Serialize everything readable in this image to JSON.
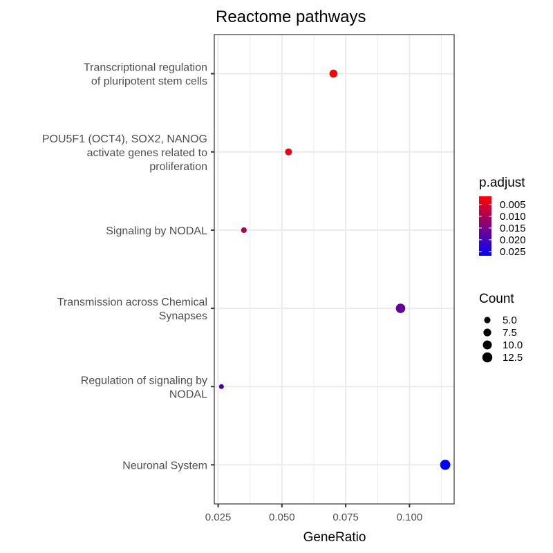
{
  "chart_data": {
    "type": "scatter",
    "title": "Reactome pathways",
    "xlabel": "GeneRatio",
    "ylabel": "",
    "xlim": [
      0.0235,
      0.1175
    ],
    "xticks": [
      0.025,
      0.05,
      0.075,
      0.1
    ],
    "xtick_labels": [
      "0.025",
      "0.050",
      "0.075",
      "0.100"
    ],
    "grid": true,
    "categories": [
      [
        "Transcriptional regulation",
        "of pluripotent stem cells"
      ],
      [
        "POU5F1 (OCT4), SOX2, NANOG",
        "activate genes related to",
        "proliferation"
      ],
      [
        "Signaling by NODAL"
      ],
      [
        "Transmission across Chemical",
        "Synapses"
      ],
      [
        "Regulation of signaling by",
        "NODAL"
      ],
      [
        "Neuronal System"
      ]
    ],
    "points": [
      {
        "x": 0.0702,
        "count": 8,
        "p_adjust": 0.0018
      },
      {
        "x": 0.0526,
        "count": 6,
        "p_adjust": 0.003
      },
      {
        "x": 0.0351,
        "count": 4,
        "p_adjust": 0.009
      },
      {
        "x": 0.0965,
        "count": 11,
        "p_adjust": 0.017
      },
      {
        "x": 0.0263,
        "count": 3,
        "p_adjust": 0.02
      },
      {
        "x": 0.114,
        "count": 13,
        "p_adjust": 0.0265
      }
    ],
    "color_legend": {
      "title": "p.adjust",
      "ticks": [
        0.005,
        0.01,
        0.015,
        0.02,
        0.025
      ],
      "tick_labels": [
        "0.005",
        "0.010",
        "0.015",
        "0.020",
        "0.025"
      ],
      "range": [
        0.0015,
        0.0268
      ],
      "low_color": "#ff0000",
      "high_color": "#0000ff"
    },
    "size_legend": {
      "title": "Count",
      "values": [
        5.0,
        7.5,
        10.0,
        12.5
      ],
      "labels": [
        "5.0",
        "7.5",
        "10.0",
        "12.5"
      ]
    },
    "legend_position": "right"
  }
}
